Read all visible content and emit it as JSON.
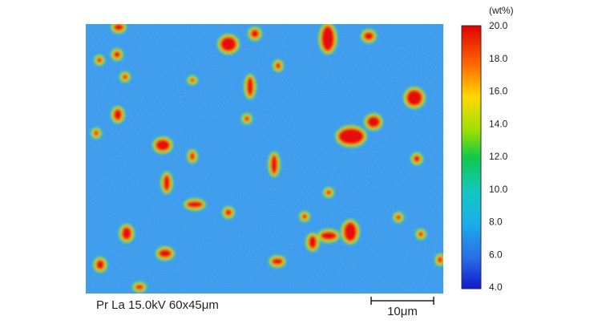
{
  "map": {
    "caption": "Pr La 15.0kV 60x45μm",
    "scale_bar": "10μm"
  },
  "colorbar": {
    "unit": "(wt%)",
    "ticks": [
      "20.0",
      "18.0",
      "16.0",
      "14.0",
      "12.0",
      "10.0",
      "8.0",
      "6.0",
      "4.0"
    ]
  }
}
